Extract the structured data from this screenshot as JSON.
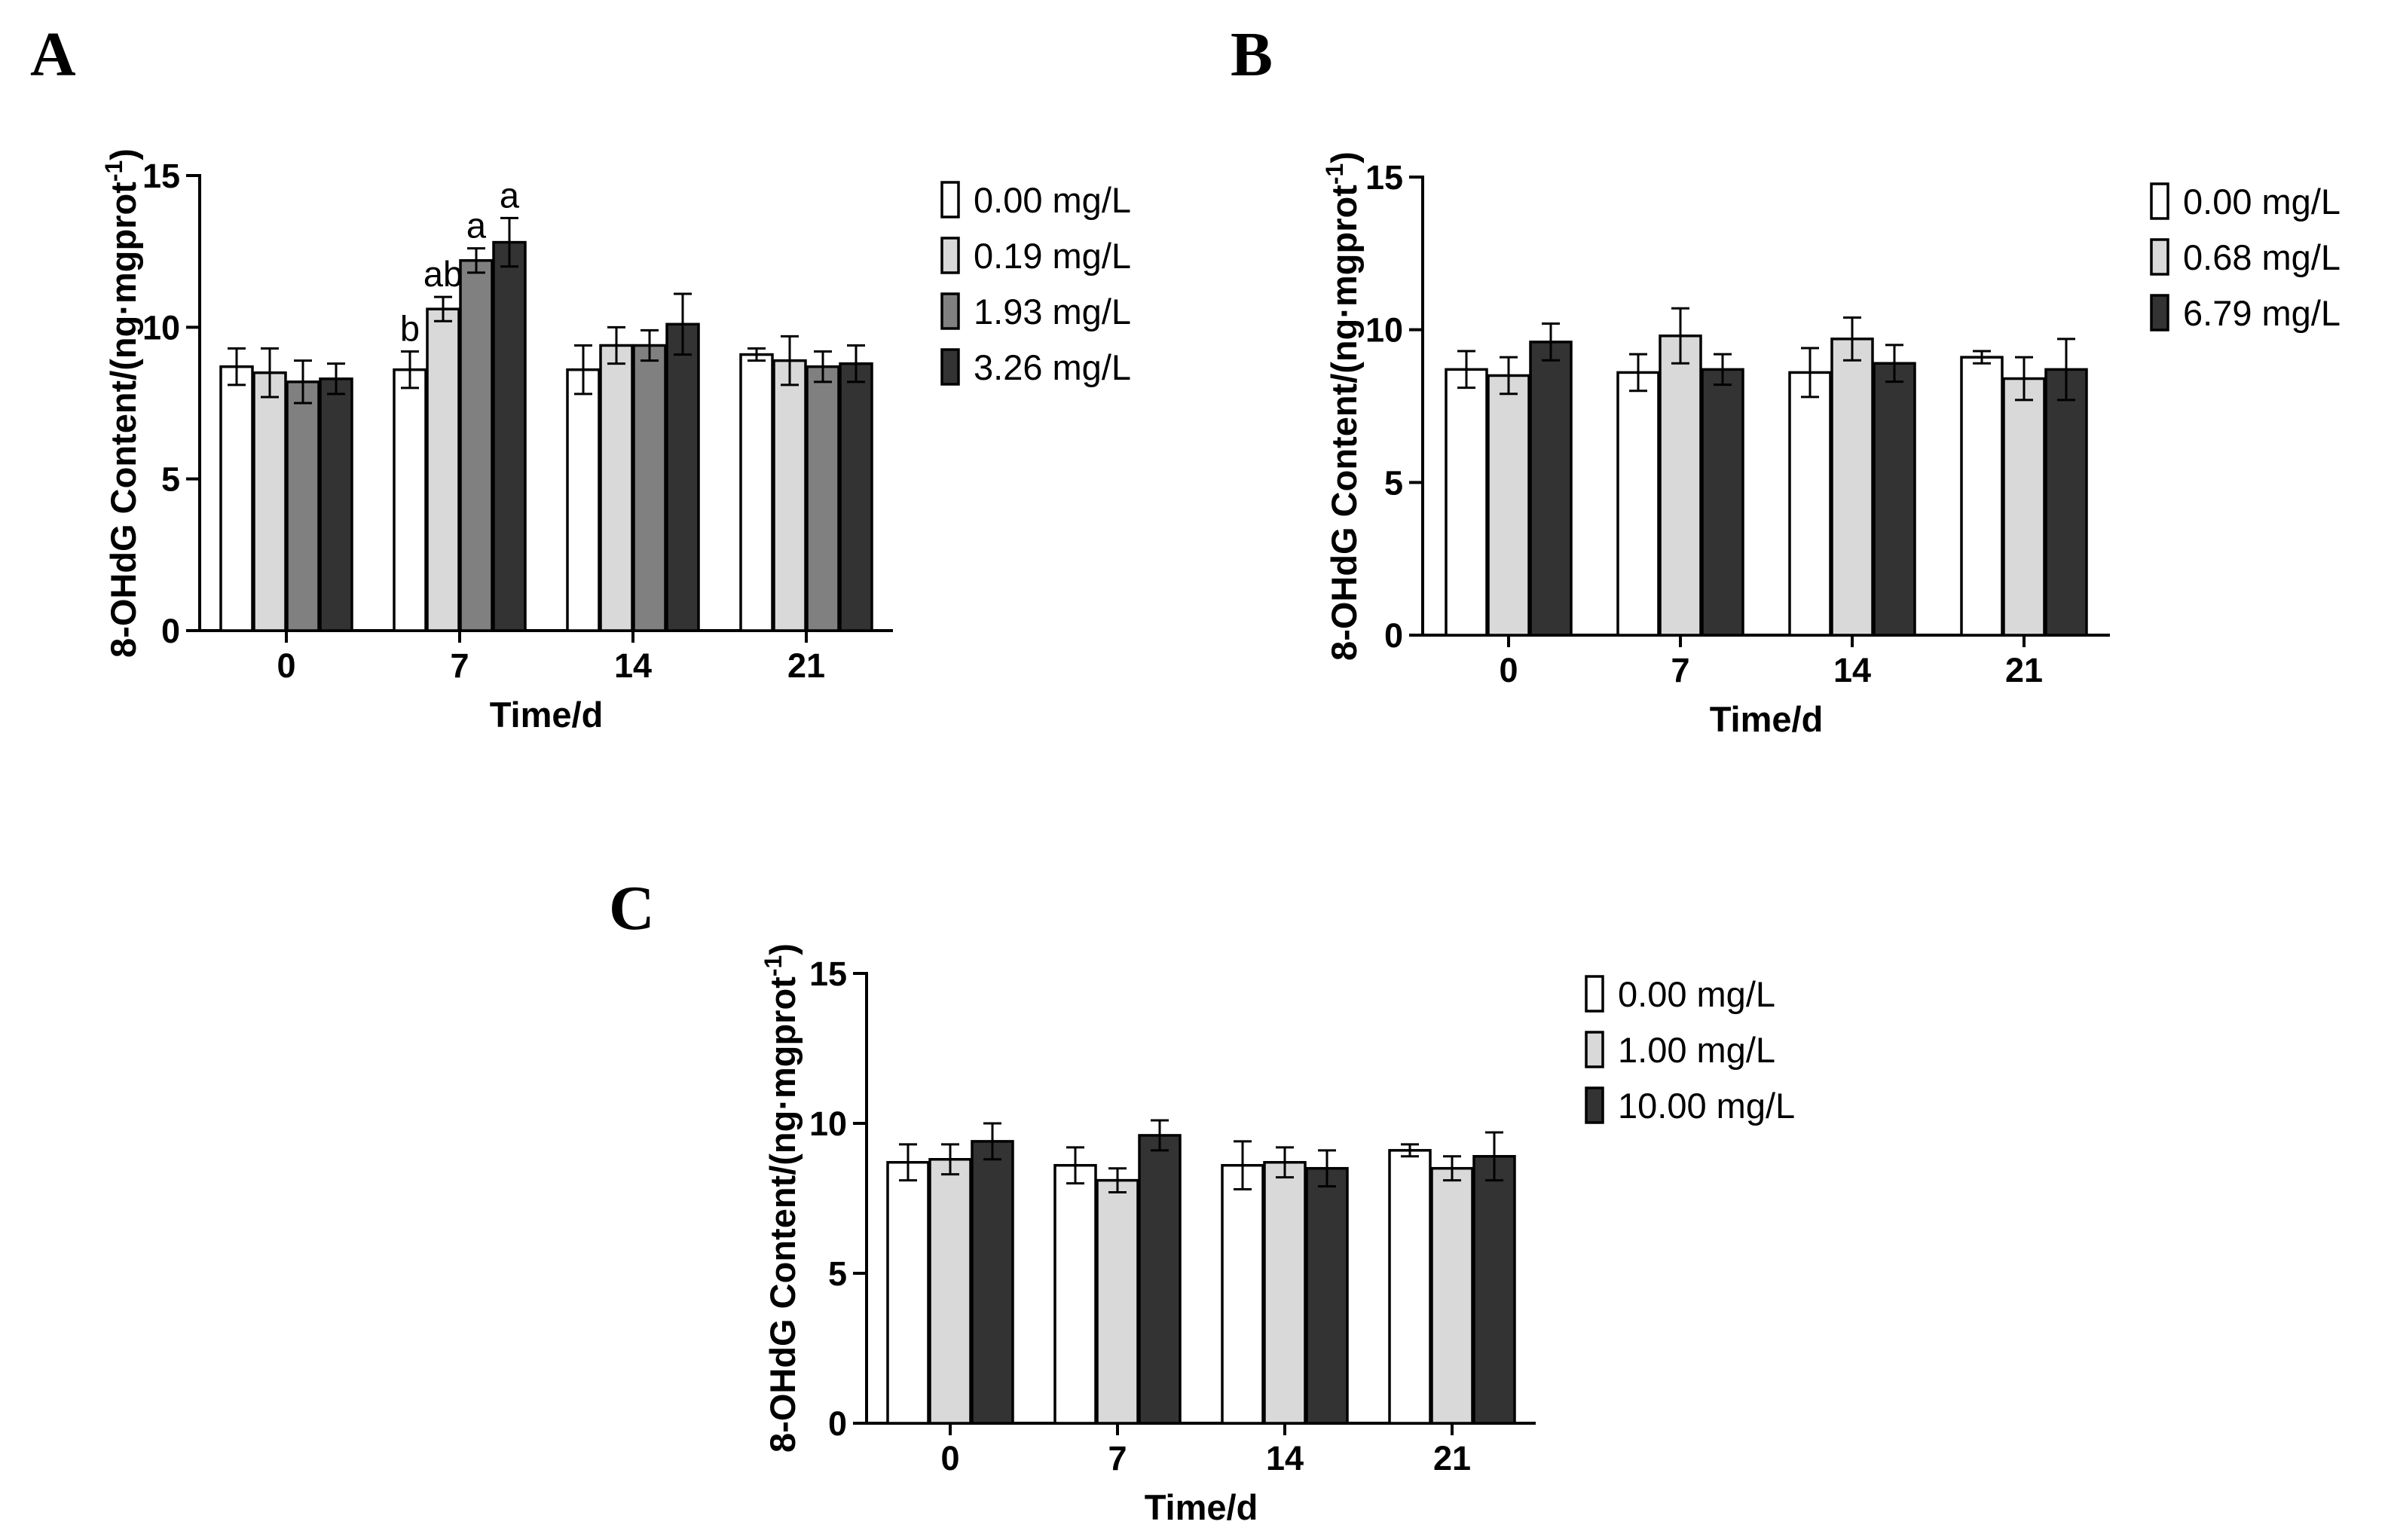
{
  "chart_data": [
    {
      "panel": "A",
      "type": "bar",
      "ylabel": "8-OHdG Content/(ng·mgprot",
      "ylabel_sup": "-1",
      "ylabel_close": ")",
      "xlabel": "Time/d",
      "categories": [
        "0",
        "7",
        "14",
        "21"
      ],
      "ylim": [
        0,
        15
      ],
      "yticks": [
        "0",
        "5",
        "10",
        "15"
      ],
      "legend_position": "right",
      "series": [
        {
          "name": "0.00 mg/L",
          "color": "#ffffff",
          "values": [
            8.7,
            8.6,
            8.6,
            9.1
          ],
          "errors": [
            0.6,
            0.6,
            0.8,
            0.2
          ]
        },
        {
          "name": "0.19 mg/L",
          "color": "#d9d9d9",
          "values": [
            8.5,
            10.6,
            9.4,
            8.9
          ],
          "errors": [
            0.8,
            0.4,
            0.6,
            0.8
          ]
        },
        {
          "name": "1.93 mg/L",
          "color": "#808080",
          "values": [
            8.2,
            12.2,
            9.4,
            8.7
          ],
          "errors": [
            0.7,
            0.4,
            0.5,
            0.5
          ]
        },
        {
          "name": "3.26 mg/L",
          "color": "#333333",
          "values": [
            8.3,
            12.8,
            10.1,
            8.8
          ],
          "errors": [
            0.5,
            0.8,
            1.0,
            0.6
          ]
        }
      ],
      "annotations": [
        {
          "text": "b",
          "category": "7",
          "series": 0
        },
        {
          "text": "ab",
          "category": "7",
          "series": 1
        },
        {
          "text": "a",
          "category": "7",
          "series": 2
        },
        {
          "text": "a",
          "category": "7",
          "series": 3
        }
      ]
    },
    {
      "panel": "B",
      "type": "bar",
      "ylabel": "8-OHdG Content/(ng·mgprot",
      "ylabel_sup": "-1",
      "ylabel_close": ")",
      "xlabel": "Time/d",
      "categories": [
        "0",
        "7",
        "14",
        "21"
      ],
      "ylim": [
        0,
        15
      ],
      "yticks": [
        "0",
        "5",
        "10",
        "15"
      ],
      "legend_position": "right",
      "series": [
        {
          "name": "0.00 mg/L",
          "color": "#ffffff",
          "values": [
            8.7,
            8.6,
            8.6,
            9.1
          ],
          "errors": [
            0.6,
            0.6,
            0.8,
            0.2
          ]
        },
        {
          "name": "0.68 mg/L",
          "color": "#d9d9d9",
          "values": [
            8.5,
            9.8,
            9.7,
            8.4
          ],
          "errors": [
            0.6,
            0.9,
            0.7,
            0.7
          ]
        },
        {
          "name": "6.79 mg/L",
          "color": "#333333",
          "values": [
            9.6,
            8.7,
            8.9,
            8.7
          ],
          "errors": [
            0.6,
            0.5,
            0.6,
            1.0
          ]
        }
      ],
      "annotations": []
    },
    {
      "panel": "C",
      "type": "bar",
      "ylabel": "8-OHdG Content/(ng·mgprot",
      "ylabel_sup": "-1",
      "ylabel_close": ")",
      "xlabel": "Time/d",
      "categories": [
        "0",
        "7",
        "14",
        "21"
      ],
      "ylim": [
        0,
        15
      ],
      "yticks": [
        "0",
        "5",
        "10",
        "15"
      ],
      "legend_position": "right",
      "series": [
        {
          "name": "0.00 mg/L",
          "color": "#ffffff",
          "values": [
            8.7,
            8.6,
            8.6,
            9.1
          ],
          "errors": [
            0.6,
            0.6,
            0.8,
            0.2
          ]
        },
        {
          "name": "1.00 mg/L",
          "color": "#d9d9d9",
          "values": [
            8.8,
            8.1,
            8.7,
            8.5
          ],
          "errors": [
            0.5,
            0.4,
            0.5,
            0.4
          ]
        },
        {
          "name": "10.00 mg/L",
          "color": "#333333",
          "values": [
            9.4,
            9.6,
            8.5,
            8.9
          ],
          "errors": [
            0.6,
            0.5,
            0.6,
            0.8
          ]
        }
      ],
      "annotations": []
    }
  ]
}
